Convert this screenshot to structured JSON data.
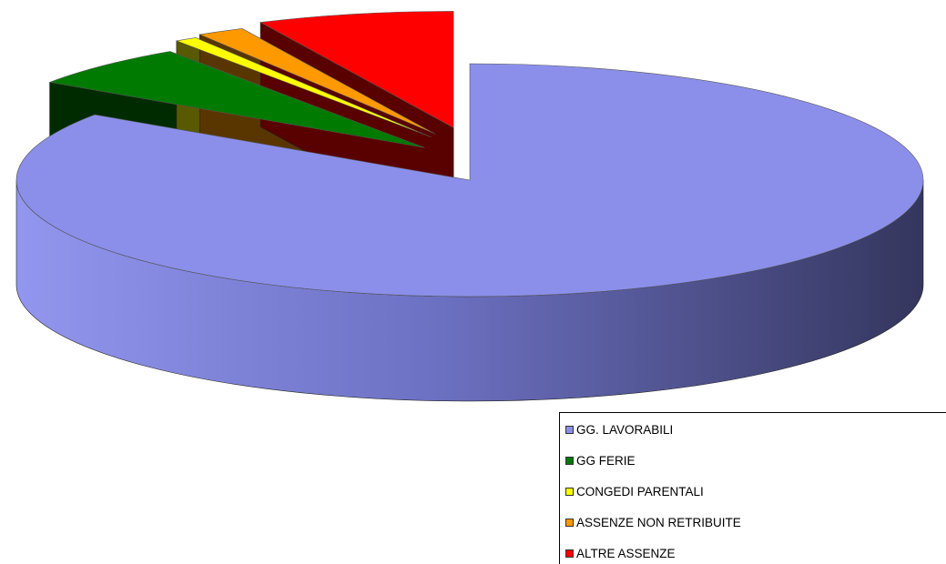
{
  "chart_data": {
    "type": "pie",
    "style": "3d-exploded",
    "categories": [
      "GG. LAVORABILI",
      "GG FERIE",
      "CONGEDI PARENTALI",
      "ASSENZE NON RETRIBUITE",
      "ALTRE ASSENZE"
    ],
    "values": [
      84.5,
      6.0,
      0.8,
      1.7,
      7.0
    ],
    "unit": "%",
    "colors": [
      "#8b8fea",
      "#007a00",
      "#ffff00",
      "#ff9900",
      "#ff0000"
    ],
    "legend": {
      "placement": "bottom-right",
      "entries": [
        {
          "label": "GG. LAVORABILI",
          "color": "#8b8fea"
        },
        {
          "label": "GG FERIE",
          "color": "#007a00"
        },
        {
          "label": "CONGEDI PARENTALI",
          "color": "#ffff00"
        },
        {
          "label": "ASSENZE NON RETRIBUITE",
          "color": "#ff9900"
        },
        {
          "label": "ALTRE ASSENZE",
          "color": "#ff0000"
        }
      ]
    },
    "title": ""
  }
}
